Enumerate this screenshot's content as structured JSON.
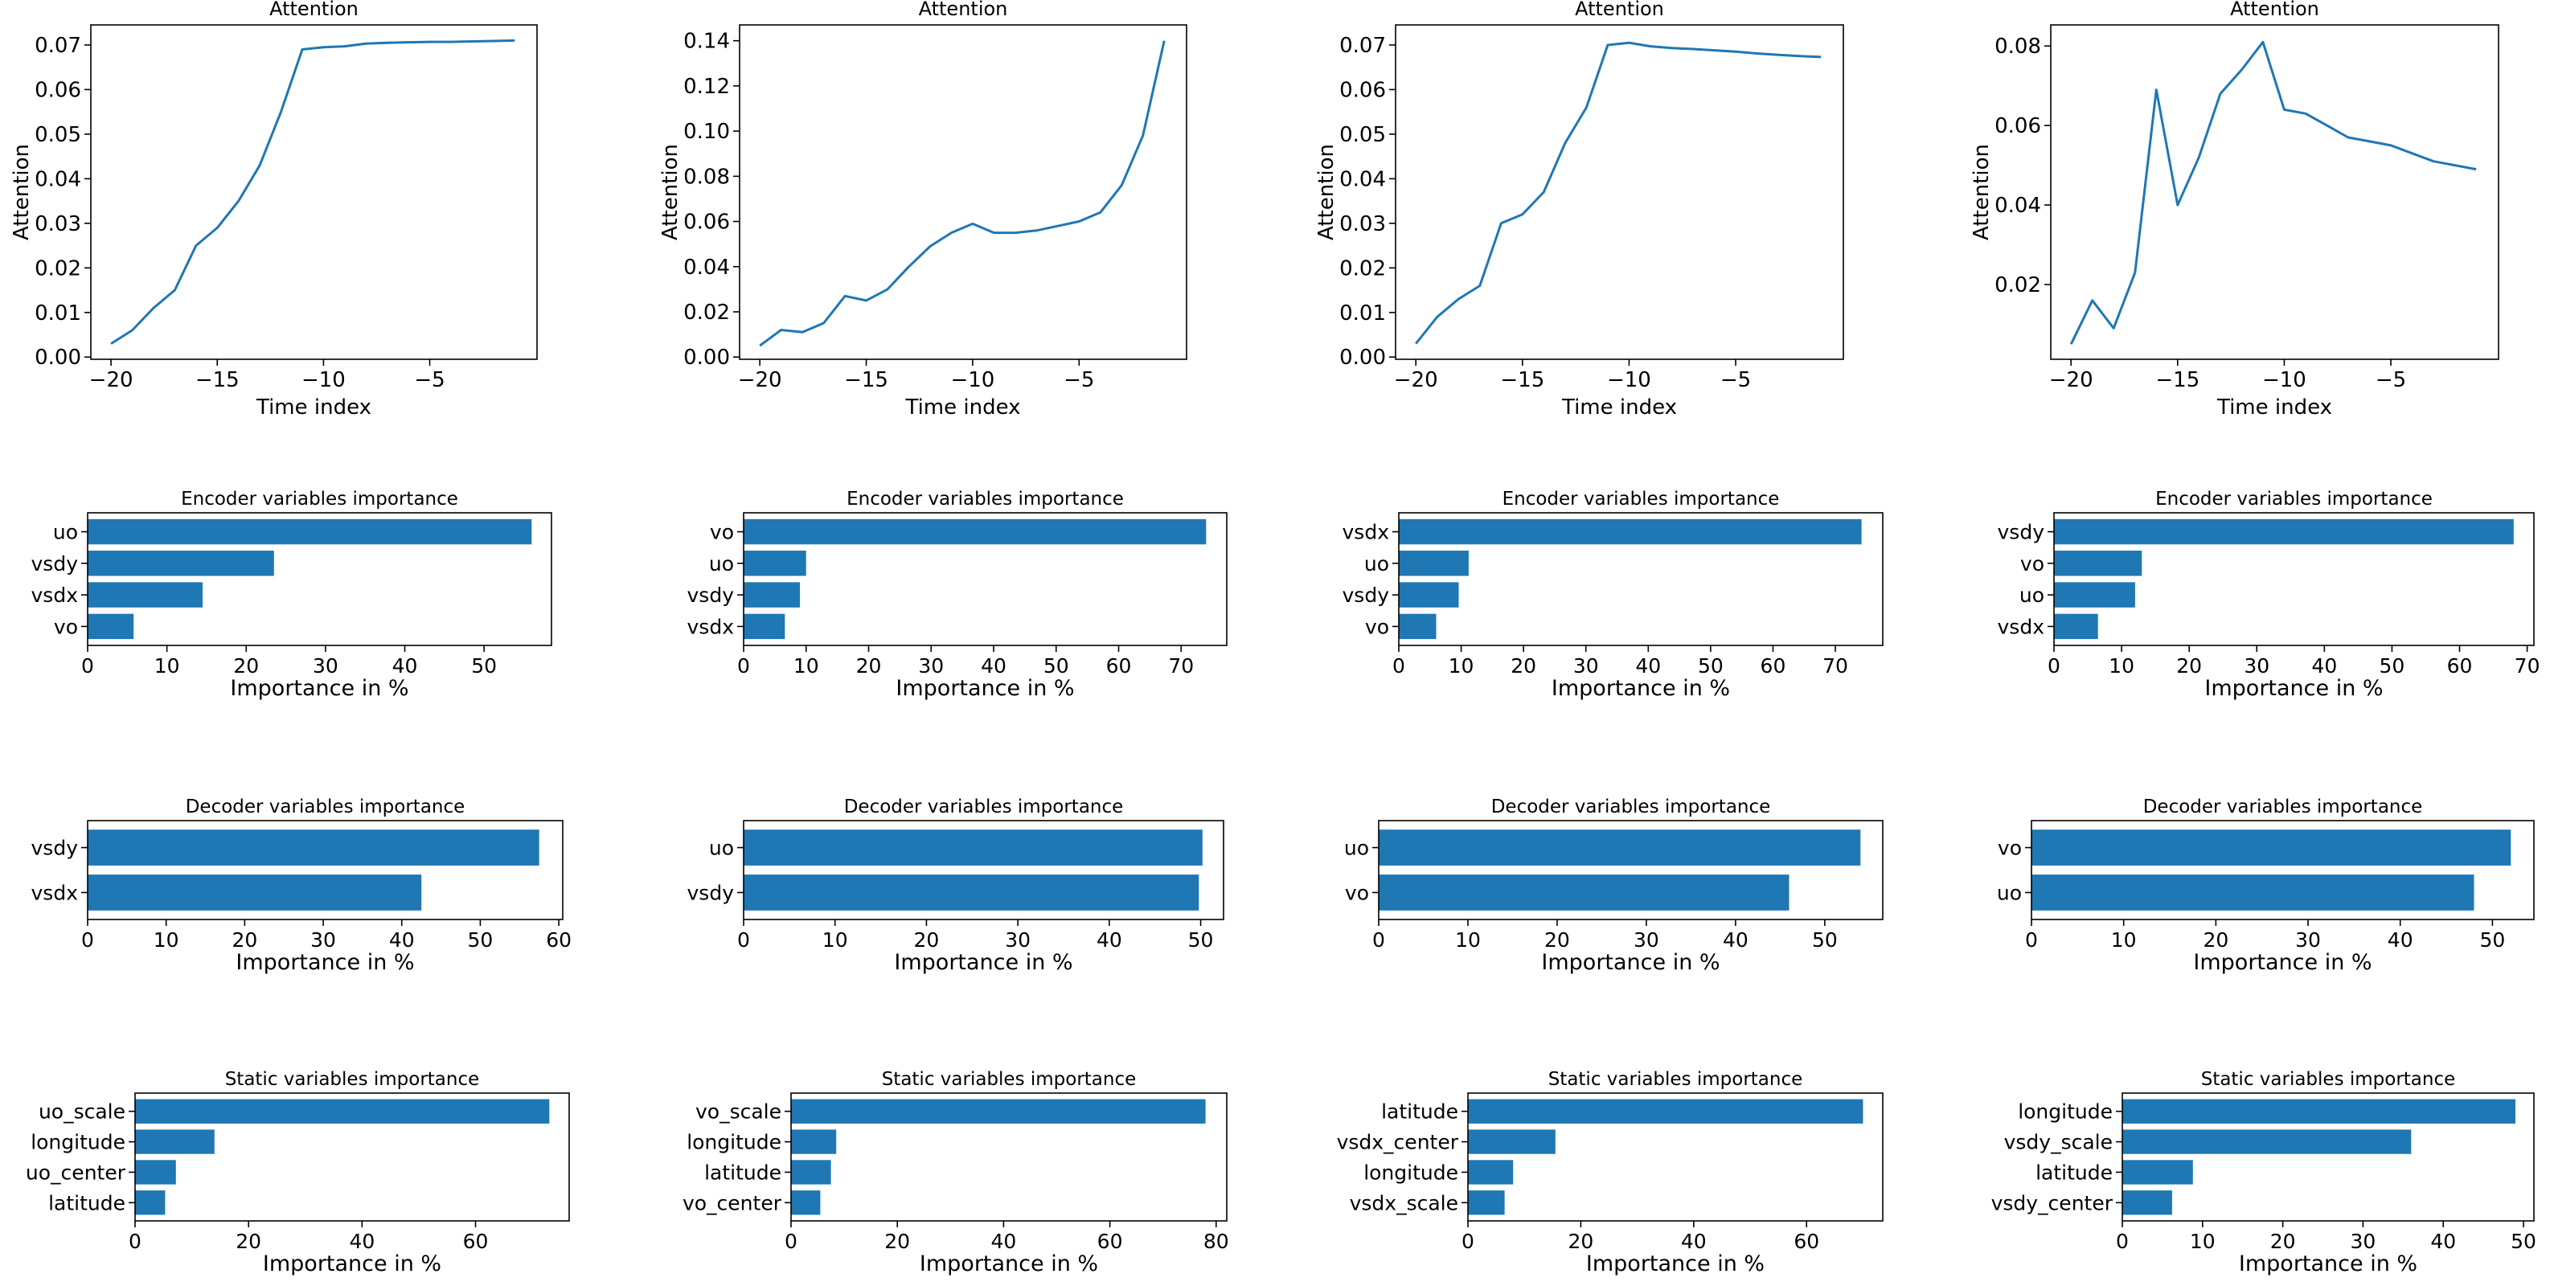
{
  "chart_data": [
    {
      "type": "line",
      "title": "Attention",
      "xlabel": "Time index",
      "ylabel": "Attention",
      "x": [
        -20,
        -19,
        -18,
        -17,
        -16,
        -15,
        -14,
        -13,
        -12,
        -11,
        -10,
        -9,
        -8,
        -7,
        -6,
        -5,
        -4,
        -3,
        -2,
        -1
      ],
      "series": [
        {
          "name": "attention",
          "values": [
            0.003,
            0.006,
            0.011,
            0.015,
            0.025,
            0.029,
            0.035,
            0.043,
            0.055,
            0.069,
            0.0695,
            0.0697,
            0.0703,
            0.0705,
            0.0706,
            0.0707,
            0.0707,
            0.0708,
            0.0709,
            0.071
          ]
        }
      ],
      "xlim": [
        -20.95,
        0.05
      ],
      "ylim": [
        -0.0005,
        0.0745
      ],
      "xticks": [
        -20,
        -15,
        -10,
        -5
      ],
      "xtick_labels": [
        "−20",
        "−15",
        "−10",
        "−5"
      ],
      "yticks": [
        0,
        0.01,
        0.02,
        0.03,
        0.04,
        0.05,
        0.06,
        0.07
      ],
      "ytick_labels": [
        "0.00",
        "0.01",
        "0.02",
        "0.03",
        "0.04",
        "0.05",
        "0.06",
        "0.07"
      ]
    },
    {
      "type": "line",
      "title": "Attention",
      "xlabel": "Time index",
      "ylabel": "Attention",
      "x": [
        -20,
        -19,
        -18,
        -17,
        -16,
        -15,
        -14,
        -13,
        -12,
        -11,
        -10,
        -9,
        -8,
        -7,
        -6,
        -5,
        -4,
        -3,
        -2,
        -1
      ],
      "series": [
        {
          "name": "attention",
          "values": [
            0.005,
            0.012,
            0.011,
            0.015,
            0.027,
            0.025,
            0.03,
            0.04,
            0.049,
            0.055,
            0.059,
            0.055,
            0.055,
            0.056,
            0.058,
            0.06,
            0.064,
            0.076,
            0.098,
            0.14
          ]
        }
      ],
      "xlim": [
        -20.95,
        0.05
      ],
      "ylim": [
        -0.001,
        0.147
      ],
      "xticks": [
        -20,
        -15,
        -10,
        -5
      ],
      "xtick_labels": [
        "−20",
        "−15",
        "−10",
        "−5"
      ],
      "yticks": [
        0,
        0.02,
        0.04,
        0.06,
        0.08,
        0.1,
        0.12,
        0.14
      ],
      "ytick_labels": [
        "0.00",
        "0.02",
        "0.04",
        "0.06",
        "0.08",
        "0.10",
        "0.12",
        "0.14"
      ]
    },
    {
      "type": "line",
      "title": "Attention",
      "xlabel": "Time index",
      "ylabel": "Attention",
      "x": [
        -20,
        -19,
        -18,
        -17,
        -16,
        -15,
        -14,
        -13,
        -12,
        -11,
        -10,
        -9,
        -8,
        -7,
        -6,
        -5,
        -4,
        -3,
        -2,
        -1
      ],
      "series": [
        {
          "name": "attention",
          "values": [
            0.003,
            0.009,
            0.013,
            0.016,
            0.03,
            0.032,
            0.037,
            0.048,
            0.056,
            0.07,
            0.0705,
            0.0697,
            0.0693,
            0.0691,
            0.0688,
            0.0685,
            0.0681,
            0.0678,
            0.0675,
            0.0673
          ]
        }
      ],
      "xlim": [
        -20.95,
        0.05
      ],
      "ylim": [
        -0.0005,
        0.0745
      ],
      "xticks": [
        -20,
        -15,
        -10,
        -5
      ],
      "xtick_labels": [
        "−20",
        "−15",
        "−10",
        "−5"
      ],
      "yticks": [
        0,
        0.01,
        0.02,
        0.03,
        0.04,
        0.05,
        0.06,
        0.07
      ],
      "ytick_labels": [
        "0.00",
        "0.01",
        "0.02",
        "0.03",
        "0.04",
        "0.05",
        "0.06",
        "0.07"
      ]
    },
    {
      "type": "line",
      "title": "Attention",
      "xlabel": "Time index",
      "ylabel": "Attention",
      "x": [
        -20,
        -19,
        -18,
        -17,
        -16,
        -15,
        -14,
        -13,
        -12,
        -11,
        -10,
        -9,
        -8,
        -7,
        -6,
        -5,
        -4,
        -3,
        -2,
        -1
      ],
      "series": [
        {
          "name": "attention",
          "values": [
            0.005,
            0.016,
            0.009,
            0.023,
            0.069,
            0.04,
            0.052,
            0.068,
            0.074,
            0.081,
            0.064,
            0.063,
            0.06,
            0.057,
            0.056,
            0.055,
            0.053,
            0.051,
            0.05,
            0.049
          ]
        }
      ],
      "xlim": [
        -20.95,
        0.05
      ],
      "ylim": [
        0.0012,
        0.0853
      ],
      "xticks": [
        -20,
        -15,
        -10,
        -5
      ],
      "xtick_labels": [
        "−20",
        "−15",
        "−10",
        "−5"
      ],
      "yticks": [
        0.02,
        0.04,
        0.06,
        0.08
      ],
      "ytick_labels": [
        "0.02",
        "0.04",
        "0.06",
        "0.08"
      ]
    },
    {
      "type": "bar",
      "orientation": "horizontal",
      "title": "Encoder variables importance",
      "xlabel": "Importance in %",
      "categories": [
        "uo",
        "vsdy",
        "vsdx",
        "vo"
      ],
      "values": [
        56,
        23.5,
        14.5,
        5.8
      ],
      "xlim": [
        0,
        58.5
      ],
      "xticks": [
        0,
        10,
        20,
        30,
        40,
        50
      ],
      "xtick_labels": [
        "0",
        "10",
        "20",
        "30",
        "40",
        "50"
      ]
    },
    {
      "type": "bar",
      "orientation": "horizontal",
      "title": "Encoder variables importance",
      "xlabel": "Importance in %",
      "categories": [
        "vo",
        "uo",
        "vsdy",
        "vsdx"
      ],
      "values": [
        74,
        10,
        9,
        6.6
      ],
      "xlim": [
        0,
        77.3
      ],
      "xticks": [
        0,
        10,
        20,
        30,
        40,
        50,
        60,
        70
      ],
      "xtick_labels": [
        "0",
        "10",
        "20",
        "30",
        "40",
        "50",
        "60",
        "70"
      ]
    },
    {
      "type": "bar",
      "orientation": "horizontal",
      "title": "Encoder variables importance",
      "xlabel": "Importance in %",
      "categories": [
        "vsdx",
        "uo",
        "vsdy",
        "vo"
      ],
      "values": [
        74.2,
        11.2,
        9.6,
        6
      ],
      "xlim": [
        0,
        77.6
      ],
      "xticks": [
        0,
        10,
        20,
        30,
        40,
        50,
        60,
        70
      ],
      "xtick_labels": [
        "0",
        "10",
        "20",
        "30",
        "40",
        "50",
        "60",
        "70"
      ]
    },
    {
      "type": "bar",
      "orientation": "horizontal",
      "title": "Encoder variables importance",
      "xlabel": "Importance in %",
      "categories": [
        "vsdy",
        "vo",
        "uo",
        "vsdx"
      ],
      "values": [
        68,
        13,
        12,
        6.5
      ],
      "xlim": [
        0,
        71
      ],
      "xticks": [
        0,
        10,
        20,
        30,
        40,
        50,
        60,
        70
      ],
      "xtick_labels": [
        "0",
        "10",
        "20",
        "30",
        "40",
        "50",
        "60",
        "70"
      ]
    },
    {
      "type": "bar",
      "orientation": "horizontal",
      "title": "Decoder variables importance",
      "xlabel": "Importance in %",
      "categories": [
        "vsdy",
        "vsdx"
      ],
      "values": [
        57.5,
        42.5
      ],
      "xlim": [
        0,
        60.5
      ],
      "xticks": [
        0,
        10,
        20,
        30,
        40,
        50,
        60
      ],
      "xtick_labels": [
        "0",
        "10",
        "20",
        "30",
        "40",
        "50",
        "60"
      ]
    },
    {
      "type": "bar",
      "orientation": "horizontal",
      "title": "Decoder variables importance",
      "xlabel": "Importance in %",
      "categories": [
        "uo",
        "vsdy"
      ],
      "values": [
        50.2,
        49.8
      ],
      "xlim": [
        0,
        52.5
      ],
      "xticks": [
        0,
        10,
        20,
        30,
        40,
        50
      ],
      "xtick_labels": [
        "0",
        "10",
        "20",
        "30",
        "40",
        "50"
      ]
    },
    {
      "type": "bar",
      "orientation": "horizontal",
      "title": "Decoder variables importance",
      "xlabel": "Importance in %",
      "categories": [
        "uo",
        "vo"
      ],
      "values": [
        54,
        46
      ],
      "xlim": [
        0,
        56.5
      ],
      "xticks": [
        0,
        10,
        20,
        30,
        40,
        50
      ],
      "xtick_labels": [
        "0",
        "10",
        "20",
        "30",
        "40",
        "50"
      ]
    },
    {
      "type": "bar",
      "orientation": "horizontal",
      "title": "Decoder variables importance",
      "xlabel": "Importance in %",
      "categories": [
        "vo",
        "uo"
      ],
      "values": [
        52,
        48
      ],
      "xlim": [
        0,
        54.5
      ],
      "xticks": [
        0,
        10,
        20,
        30,
        40,
        50
      ],
      "xtick_labels": [
        "0",
        "10",
        "20",
        "30",
        "40",
        "50"
      ]
    },
    {
      "type": "bar",
      "orientation": "horizontal",
      "title": "Static variables importance",
      "xlabel": "Importance in %",
      "categories": [
        "uo_scale",
        "longitude",
        "uo_center",
        "latitude"
      ],
      "values": [
        73,
        14,
        7.2,
        5.3
      ],
      "xlim": [
        0,
        76.5
      ],
      "xticks": [
        0,
        20,
        40,
        60
      ],
      "xtick_labels": [
        "0",
        "20",
        "40",
        "60"
      ]
    },
    {
      "type": "bar",
      "orientation": "horizontal",
      "title": "Static variables importance",
      "xlabel": "Importance in %",
      "categories": [
        "vo_scale",
        "longitude",
        "latitude",
        "vo_center"
      ],
      "values": [
        78,
        8.5,
        7.5,
        5.5
      ],
      "xlim": [
        0,
        82
      ],
      "xticks": [
        0,
        20,
        40,
        60,
        80
      ],
      "xtick_labels": [
        "0",
        "20",
        "40",
        "60",
        "80"
      ]
    },
    {
      "type": "bar",
      "orientation": "horizontal",
      "title": "Static variables importance",
      "xlabel": "Importance in %",
      "categories": [
        "latitude",
        "vsdx_center",
        "longitude",
        "vsdx_scale"
      ],
      "values": [
        70,
        15.5,
        8,
        6.5
      ],
      "xlim": [
        0,
        73.5
      ],
      "xticks": [
        0,
        20,
        40,
        60
      ],
      "xtick_labels": [
        "0",
        "20",
        "40",
        "60"
      ]
    },
    {
      "type": "bar",
      "orientation": "horizontal",
      "title": "Static variables importance",
      "xlabel": "Importance in %",
      "categories": [
        "longitude",
        "vsdy_scale",
        "latitude",
        "vsdy_center"
      ],
      "values": [
        49,
        36,
        8.8,
        6.2
      ],
      "xlim": [
        0,
        51.3
      ],
      "xticks": [
        0,
        10,
        20,
        30,
        40,
        50
      ],
      "xtick_labels": [
        "0",
        "10",
        "20",
        "30",
        "40",
        "50"
      ]
    }
  ]
}
